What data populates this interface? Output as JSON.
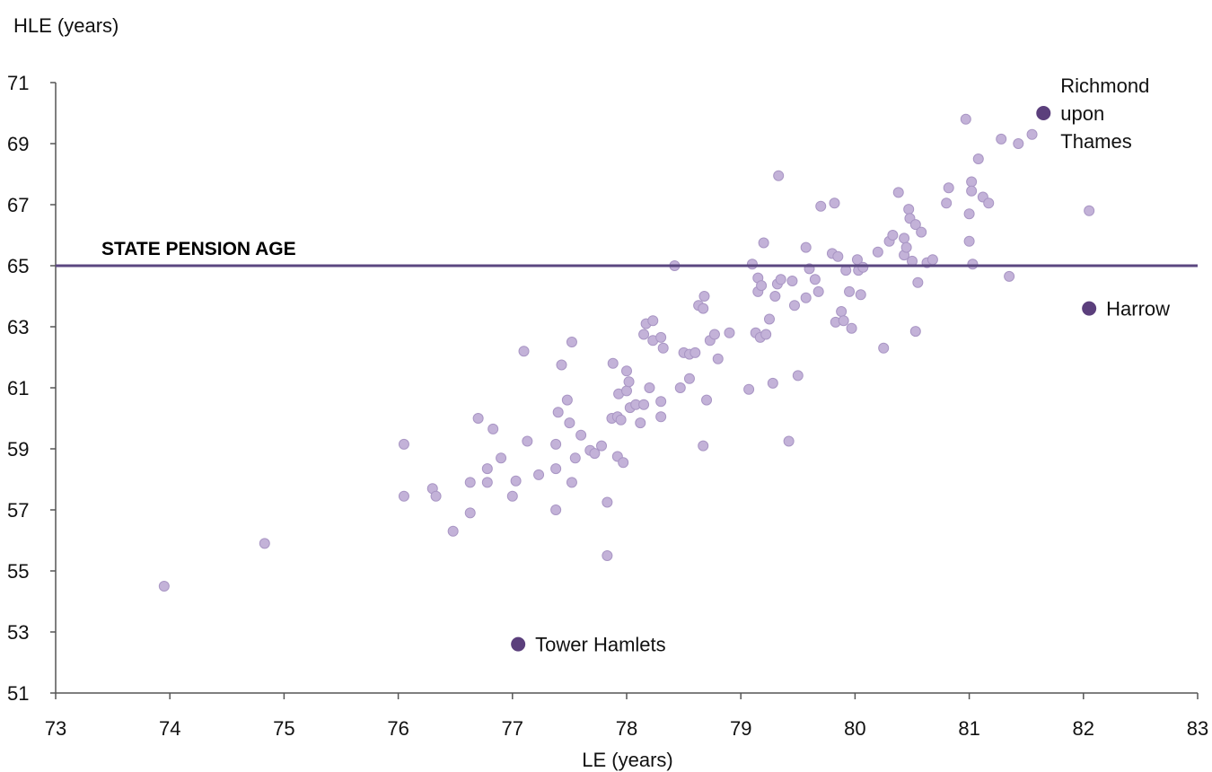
{
  "chart_data": {
    "type": "scatter",
    "title": "",
    "ylabel": "HLE (years)",
    "xlabel": "LE (years)",
    "xlim": [
      73,
      83
    ],
    "ylim": [
      51,
      71
    ],
    "x_ticks": [
      73,
      74,
      75,
      76,
      77,
      78,
      79,
      80,
      81,
      82,
      83
    ],
    "y_ticks": [
      51,
      53,
      55,
      57,
      59,
      61,
      63,
      65,
      67,
      69,
      71
    ],
    "grid": false,
    "colors": {
      "points": "#c3b2d8",
      "points_edge": "#a996c4",
      "highlight": "#5b3f7c",
      "reference_line": "#5b4780",
      "axis": "#555555"
    },
    "reference_line": {
      "y": 65,
      "label": "STATE PENSION AGE"
    },
    "highlighted_points": [
      {
        "label": "Richmond upon Thames",
        "label_lines": [
          "Richmond",
          "upon",
          "Thames"
        ],
        "x": 81.65,
        "y": 70.0
      },
      {
        "label": "Harrow",
        "label_lines": [
          "Harrow"
        ],
        "x": 82.05,
        "y": 63.6
      },
      {
        "label": "Tower Hamlets",
        "label_lines": [
          "Tower Hamlets"
        ],
        "x": 77.05,
        "y": 52.6
      }
    ],
    "points": [
      [
        73.95,
        54.5
      ],
      [
        74.83,
        55.9
      ],
      [
        76.05,
        59.15
      ],
      [
        76.05,
        57.45
      ],
      [
        76.3,
        57.7
      ],
      [
        76.33,
        57.45
      ],
      [
        76.48,
        56.3
      ],
      [
        76.63,
        56.9
      ],
      [
        76.63,
        57.9
      ],
      [
        76.7,
        60.0
      ],
      [
        76.78,
        57.9
      ],
      [
        76.78,
        58.35
      ],
      [
        76.83,
        59.65
      ],
      [
        76.9,
        58.7
      ],
      [
        77.0,
        57.45
      ],
      [
        77.03,
        57.95
      ],
      [
        77.1,
        62.2
      ],
      [
        77.13,
        59.25
      ],
      [
        77.23,
        58.15
      ],
      [
        77.38,
        58.35
      ],
      [
        77.38,
        57.0
      ],
      [
        77.38,
        59.15
      ],
      [
        77.4,
        60.2
      ],
      [
        77.43,
        61.75
      ],
      [
        77.48,
        60.6
      ],
      [
        77.5,
        59.85
      ],
      [
        77.52,
        62.5
      ],
      [
        77.52,
        57.9
      ],
      [
        77.55,
        58.7
      ],
      [
        77.6,
        59.45
      ],
      [
        77.68,
        58.95
      ],
      [
        77.72,
        58.85
      ],
      [
        77.78,
        59.1
      ],
      [
        77.83,
        57.25
      ],
      [
        77.83,
        55.5
      ],
      [
        77.87,
        60.0
      ],
      [
        77.88,
        61.8
      ],
      [
        77.92,
        58.75
      ],
      [
        77.92,
        60.05
      ],
      [
        77.93,
        60.8
      ],
      [
        77.95,
        59.95
      ],
      [
        77.97,
        58.55
      ],
      [
        78.0,
        61.55
      ],
      [
        78.0,
        60.9
      ],
      [
        78.02,
        61.2
      ],
      [
        78.03,
        60.35
      ],
      [
        78.08,
        60.45
      ],
      [
        78.12,
        59.85
      ],
      [
        78.15,
        60.45
      ],
      [
        78.15,
        62.75
      ],
      [
        78.17,
        63.1
      ],
      [
        78.2,
        61.0
      ],
      [
        78.23,
        63.2
      ],
      [
        78.23,
        62.55
      ],
      [
        78.3,
        62.65
      ],
      [
        78.3,
        60.05
      ],
      [
        78.3,
        60.55
      ],
      [
        78.32,
        62.3
      ],
      [
        78.42,
        65.0
      ],
      [
        78.47,
        61.0
      ],
      [
        78.5,
        62.15
      ],
      [
        78.55,
        61.3
      ],
      [
        78.55,
        62.1
      ],
      [
        78.6,
        62.15
      ],
      [
        78.63,
        63.7
      ],
      [
        78.67,
        63.6
      ],
      [
        78.67,
        59.1
      ],
      [
        78.68,
        64.0
      ],
      [
        78.7,
        60.6
      ],
      [
        78.73,
        62.55
      ],
      [
        78.77,
        62.75
      ],
      [
        78.8,
        61.95
      ],
      [
        78.9,
        62.8
      ],
      [
        79.07,
        60.95
      ],
      [
        79.1,
        65.05
      ],
      [
        79.13,
        62.8
      ],
      [
        79.15,
        64.15
      ],
      [
        79.15,
        64.6
      ],
      [
        79.17,
        62.65
      ],
      [
        79.18,
        64.35
      ],
      [
        79.2,
        65.75
      ],
      [
        79.22,
        62.75
      ],
      [
        79.25,
        63.25
      ],
      [
        79.28,
        61.15
      ],
      [
        79.3,
        64.0
      ],
      [
        79.32,
        64.4
      ],
      [
        79.33,
        67.95
      ],
      [
        79.35,
        64.55
      ],
      [
        79.42,
        59.25
      ],
      [
        79.45,
        64.5
      ],
      [
        79.47,
        63.7
      ],
      [
        79.5,
        61.4
      ],
      [
        79.57,
        65.6
      ],
      [
        79.57,
        63.95
      ],
      [
        79.6,
        64.9
      ],
      [
        79.65,
        64.55
      ],
      [
        79.68,
        64.15
      ],
      [
        79.7,
        66.95
      ],
      [
        79.8,
        65.4
      ],
      [
        79.82,
        67.05
      ],
      [
        79.83,
        63.15
      ],
      [
        79.85,
        65.3
      ],
      [
        79.88,
        63.5
      ],
      [
        79.9,
        63.2
      ],
      [
        79.92,
        64.85
      ],
      [
        79.95,
        64.15
      ],
      [
        79.97,
        62.95
      ],
      [
        80.02,
        65.2
      ],
      [
        80.03,
        64.85
      ],
      [
        80.05,
        64.05
      ],
      [
        80.07,
        64.95
      ],
      [
        80.2,
        65.45
      ],
      [
        80.25,
        62.3
      ],
      [
        80.3,
        65.8
      ],
      [
        80.33,
        66.0
      ],
      [
        80.38,
        67.4
      ],
      [
        80.43,
        65.9
      ],
      [
        80.43,
        65.35
      ],
      [
        80.45,
        65.6
      ],
      [
        80.47,
        66.85
      ],
      [
        80.48,
        66.55
      ],
      [
        80.5,
        65.15
      ],
      [
        80.53,
        62.85
      ],
      [
        80.53,
        66.35
      ],
      [
        80.55,
        64.45
      ],
      [
        80.58,
        66.1
      ],
      [
        80.63,
        65.1
      ],
      [
        80.68,
        65.2
      ],
      [
        80.8,
        67.05
      ],
      [
        80.82,
        67.55
      ],
      [
        80.97,
        69.8
      ],
      [
        81.0,
        66.7
      ],
      [
        81.0,
        65.8
      ],
      [
        81.02,
        67.75
      ],
      [
        81.02,
        67.45
      ],
      [
        81.03,
        65.05
      ],
      [
        81.08,
        68.5
      ],
      [
        81.12,
        67.25
      ],
      [
        81.17,
        67.05
      ],
      [
        81.28,
        69.15
      ],
      [
        81.35,
        64.65
      ],
      [
        81.43,
        69.0
      ],
      [
        81.55,
        69.3
      ],
      [
        82.05,
        66.8
      ]
    ]
  }
}
